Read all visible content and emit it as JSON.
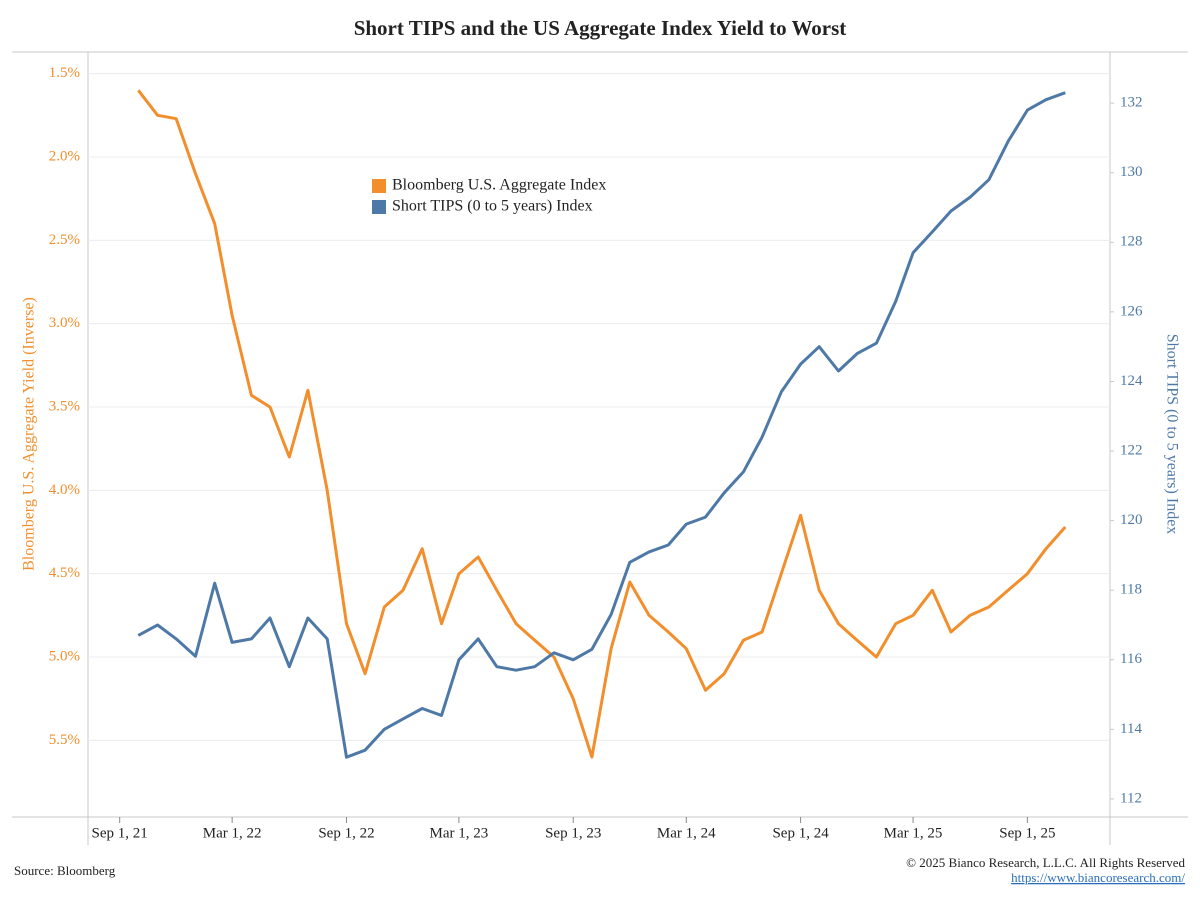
{
  "chart_data": {
    "type": "line",
    "title": "Short TIPS and the US Aggregate Index Yield to Worst",
    "y_label": "Bloomberg U.S. Aggregate Yield (Inverse)",
    "y2_label": "Short TIPS (0 to 5 years) Index",
    "source": "Source: Bloomberg",
    "copyright": "© 2025 Bianco Research, L.L.C. All Rights Reserved",
    "url": "https://www.biancoresearch.com/",
    "legend_position": "upper-center",
    "grid": true,
    "x": [
      "2021-10-01",
      "2021-11-01",
      "2021-12-01",
      "2022-01-01",
      "2022-02-01",
      "2022-03-01",
      "2022-04-01",
      "2022-05-01",
      "2022-06-01",
      "2022-07-01",
      "2022-08-01",
      "2022-09-01",
      "2022-10-01",
      "2022-11-01",
      "2022-12-01",
      "2023-01-01",
      "2023-02-01",
      "2023-03-01",
      "2023-04-01",
      "2023-05-01",
      "2023-06-01",
      "2023-07-01",
      "2023-08-01",
      "2023-09-01",
      "2023-10-01",
      "2023-11-01",
      "2023-12-01",
      "2024-01-01",
      "2024-02-01",
      "2024-03-01",
      "2024-04-01",
      "2024-05-01",
      "2024-06-01",
      "2024-07-01",
      "2024-08-01",
      "2024-09-01",
      "2024-10-01",
      "2024-11-01",
      "2024-12-01",
      "2025-01-01",
      "2025-02-01",
      "2025-03-01",
      "2025-04-01",
      "2025-05-01",
      "2025-06-01",
      "2025-07-01",
      "2025-08-01",
      "2025-09-01",
      "2025-10-01",
      "2025-11-01"
    ],
    "xlim": [
      "2021-07-12",
      "2026-01-12"
    ],
    "xticks": [
      {
        "value": "2021-09-01",
        "label": "Sep 1, 21"
      },
      {
        "value": "2022-03-01",
        "label": "Mar 1, 22"
      },
      {
        "value": "2022-09-01",
        "label": "Sep 1, 22"
      },
      {
        "value": "2023-03-01",
        "label": "Mar 1, 23"
      },
      {
        "value": "2023-09-01",
        "label": "Sep 1, 23"
      },
      {
        "value": "2024-03-01",
        "label": "Mar 1, 24"
      },
      {
        "value": "2024-09-01",
        "label": "Sep 1, 24"
      },
      {
        "value": "2025-03-01",
        "label": "Mar 1, 25"
      },
      {
        "value": "2025-09-01",
        "label": "Sep 1, 25"
      }
    ],
    "ylim": [
      5.96,
      1.37
    ],
    "yticks": [
      {
        "value": 1.5,
        "label": "1.5%"
      },
      {
        "value": 2.0,
        "label": "2.0%"
      },
      {
        "value": 2.5,
        "label": "2.5%"
      },
      {
        "value": 3.0,
        "label": "3.0%"
      },
      {
        "value": 3.5,
        "label": "3.5%"
      },
      {
        "value": 4.0,
        "label": "4.0%"
      },
      {
        "value": 4.5,
        "label": "4.5%"
      },
      {
        "value": 5.0,
        "label": "5.0%"
      },
      {
        "value": 5.5,
        "label": "5.5%"
      }
    ],
    "y_inverted": true,
    "y2lim": [
      111.48,
      133.47
    ],
    "y2ticks": [
      112,
      114,
      116,
      118,
      120,
      122,
      124,
      126,
      128,
      130,
      132
    ],
    "series": [
      {
        "name": "Bloomberg U.S. Aggregate Index",
        "color": "#f28e2b",
        "axis": "y",
        "values": [
          1.6,
          1.75,
          1.77,
          2.1,
          2.4,
          2.95,
          3.43,
          3.5,
          3.8,
          3.4,
          4.0,
          4.8,
          5.1,
          4.7,
          4.6,
          4.35,
          4.8,
          4.5,
          4.4,
          4.6,
          4.8,
          4.9,
          5.0,
          5.25,
          5.6,
          4.95,
          4.55,
          4.75,
          4.85,
          4.95,
          5.2,
          5.1,
          4.9,
          4.85,
          4.5,
          4.15,
          4.6,
          4.8,
          4.9,
          5.0,
          4.8,
          4.75,
          4.6,
          4.85,
          4.75,
          4.7,
          4.6,
          4.5,
          4.35,
          4.22
        ]
      },
      {
        "name": "Short TIPS (0 to 5 years) Index",
        "color": "#4e79a7",
        "axis": "y2",
        "values": [
          116.7,
          117.0,
          116.6,
          116.1,
          118.2,
          116.5,
          116.6,
          117.2,
          115.8,
          117.2,
          116.6,
          113.2,
          113.4,
          114.0,
          114.3,
          114.6,
          114.4,
          116.0,
          116.6,
          115.8,
          115.7,
          115.8,
          116.2,
          116.0,
          116.3,
          117.3,
          118.8,
          119.1,
          119.3,
          119.9,
          120.1,
          120.8,
          121.4,
          122.4,
          123.7,
          124.5,
          125.0,
          124.3,
          124.8,
          125.1,
          126.3,
          127.7,
          128.3,
          128.9,
          129.3,
          129.8,
          130.9,
          131.8,
          132.1,
          132.3
        ]
      }
    ]
  }
}
